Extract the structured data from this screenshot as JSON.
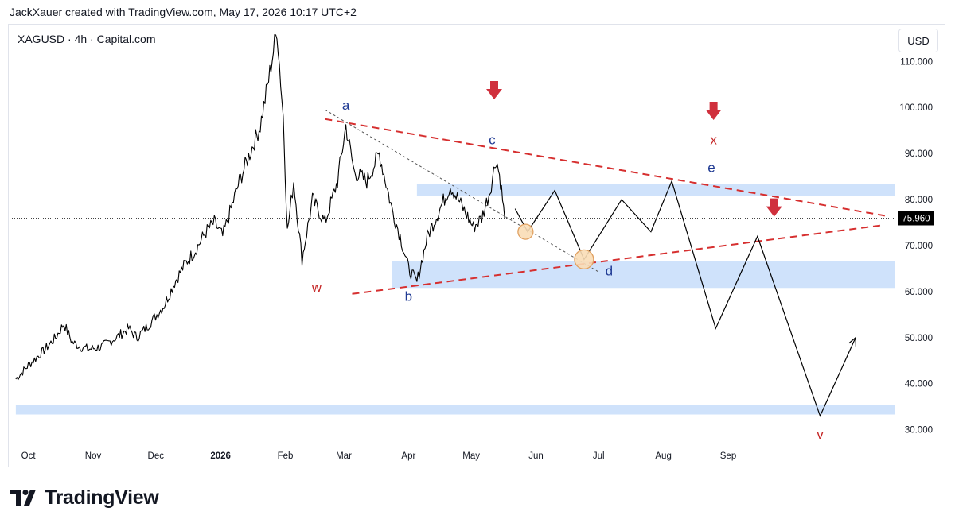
{
  "header": {
    "text": "JackXauer created with TradingView.com, May 17, 2026 10:17 UTC+2"
  },
  "symbol": {
    "text": "XAGUSD · 4h · Capital.com"
  },
  "currency_button": "USD",
  "footer": {
    "brand": "TradingView",
    "logo_icon": "tradingview-logo-icon"
  },
  "colors": {
    "zone": "#cfe2fb",
    "wave_label_red": "#c62828",
    "wave_label_blue": "#1f3a93",
    "arrow": "#d0303d",
    "circle_fill": "#f9ddb6",
    "circle_stroke": "#e0a060"
  },
  "chart_data": {
    "type": "line",
    "series": [
      {
        "values": [
          [
            "2025-09-25",
            41
          ],
          [
            "2025-10-01",
            44
          ],
          [
            "2025-10-08",
            47
          ],
          [
            "2025-10-14",
            50
          ],
          [
            "2025-10-18",
            53
          ],
          [
            "2025-10-22",
            49
          ],
          [
            "2025-10-26",
            48
          ],
          [
            "2025-10-30",
            47.5
          ],
          [
            "2025-11-05",
            48
          ],
          [
            "2025-11-12",
            50
          ],
          [
            "2025-11-18",
            52
          ],
          [
            "2025-11-22",
            50
          ],
          [
            "2025-11-28",
            53
          ],
          [
            "2025-12-05",
            57
          ],
          [
            "2025-12-10",
            62
          ],
          [
            "2025-12-15",
            66
          ],
          [
            "2025-12-20",
            69
          ],
          [
            "2025-12-25",
            73
          ],
          [
            "2025-12-29",
            75
          ],
          [
            "2026-01-02",
            72
          ],
          [
            "2026-01-06",
            78
          ],
          [
            "2026-01-10",
            84
          ],
          [
            "2026-01-15",
            90
          ],
          [
            "2026-01-20",
            96
          ],
          [
            "2026-01-24",
            106
          ],
          [
            "2026-01-28",
            117
          ],
          [
            "2026-01-31",
            98
          ],
          [
            "2026-02-02",
            73
          ],
          [
            "2026-02-05",
            84
          ],
          [
            "2026-02-09",
            67
          ],
          [
            "2026-02-14",
            80
          ],
          [
            "2026-02-20",
            75
          ],
          [
            "2026-02-26",
            84
          ],
          [
            "2026-03-02",
            96
          ],
          [
            "2026-03-06",
            86
          ],
          [
            "2026-03-12",
            84
          ],
          [
            "2026-03-18",
            90
          ],
          [
            "2026-03-24",
            78
          ],
          [
            "2026-03-28",
            72
          ],
          [
            "2026-04-01",
            65
          ],
          [
            "2026-04-05",
            62
          ],
          [
            "2026-04-10",
            72
          ],
          [
            "2026-04-16",
            78
          ],
          [
            "2026-04-21",
            83
          ],
          [
            "2026-04-26",
            79
          ],
          [
            "2026-05-02",
            74
          ],
          [
            "2026-05-06",
            76
          ],
          [
            "2026-05-10",
            82
          ],
          [
            "2026-05-13",
            89
          ],
          [
            "2026-05-15",
            84
          ],
          [
            "2026-05-17",
            76
          ]
        ]
      }
    ],
    "projection": [
      [
        "2026-05-22",
        78
      ],
      [
        "2026-05-28",
        73
      ],
      [
        "2026-06-10",
        82
      ],
      [
        "2026-06-24",
        67
      ],
      [
        "2026-07-12",
        80
      ],
      [
        "2026-07-26",
        73
      ],
      [
        "2026-08-05",
        84
      ],
      [
        "2026-08-26",
        52
      ],
      [
        "2026-09-15",
        72
      ],
      [
        "2026-10-15",
        33
      ],
      [
        "2026-11-01",
        50
      ]
    ],
    "trendlines": {
      "upper_red": [
        [
          "2026-02-20",
          97.5
        ],
        [
          "2026-11-15",
          76.5
        ]
      ],
      "lower_red": [
        [
          "2026-03-05",
          59.5
        ],
        [
          "2026-11-15",
          74.5
        ]
      ],
      "thin_dotted": [
        [
          "2026-02-20",
          99.5
        ],
        [
          "2026-07-02",
          64
        ]
      ]
    },
    "zones": [
      {
        "y": [
          80.8,
          83.3
        ],
        "x_from": "2026-04-05"
      },
      {
        "y": [
          60.8,
          66.6
        ],
        "x_from": "2026-03-24"
      },
      {
        "y": [
          33.3,
          35.3
        ],
        "x_from": "2025-09-25"
      }
    ],
    "wave_labels": [
      {
        "text": "w",
        "x": "2026-02-16",
        "y": 60,
        "color": "red"
      },
      {
        "text": "a",
        "x": "2026-03-02",
        "y": 99.5,
        "color": "blue"
      },
      {
        "text": "b",
        "x": "2026-04-01",
        "y": 58,
        "color": "blue"
      },
      {
        "text": "c",
        "x": "2026-05-11",
        "y": 92,
        "color": "blue"
      },
      {
        "text": "d",
        "x": "2026-07-06",
        "y": 63.5,
        "color": "blue"
      },
      {
        "text": "e",
        "x": "2026-08-24",
        "y": 86,
        "color": "blue"
      },
      {
        "text": "x",
        "x": "2026-08-25",
        "y": 92,
        "color": "red"
      },
      {
        "text": "v",
        "x": "2026-10-15",
        "y": 28,
        "color": "red"
      }
    ],
    "down_arrows": [
      {
        "x": "2026-05-12",
        "y": 103.5
      },
      {
        "x": "2026-08-25",
        "y": 99
      },
      {
        "x": "2026-09-23",
        "y": 78
      }
    ],
    "circles": [
      {
        "x": "2026-05-27",
        "y": 73,
        "size": "small"
      },
      {
        "x": "2026-06-24",
        "y": 67,
        "size": "large"
      }
    ],
    "current_price": {
      "value": 75.96,
      "label": "75.960"
    },
    "x_ticks": [
      "Oct",
      "Nov",
      "Dec",
      "2026",
      "Feb",
      "Mar",
      "Apr",
      "May",
      "Jun",
      "Jul",
      "Aug",
      "Sep"
    ],
    "y_ticks": [
      {
        "value": 30,
        "label": "30.000"
      },
      {
        "value": 40,
        "label": "40.000"
      },
      {
        "value": 50,
        "label": "50.000"
      },
      {
        "value": 60,
        "label": "60.000"
      },
      {
        "value": 70,
        "label": "70.000"
      },
      {
        "value": 80,
        "label": "80.000"
      },
      {
        "value": 90,
        "label": "90.000"
      },
      {
        "value": 100,
        "label": "100.000"
      },
      {
        "value": 110,
        "label": "110.000"
      }
    ],
    "ylim": [
      27,
      118
    ],
    "xlim": [
      "2025-09-22",
      "2026-11-20"
    ],
    "grid": false
  }
}
